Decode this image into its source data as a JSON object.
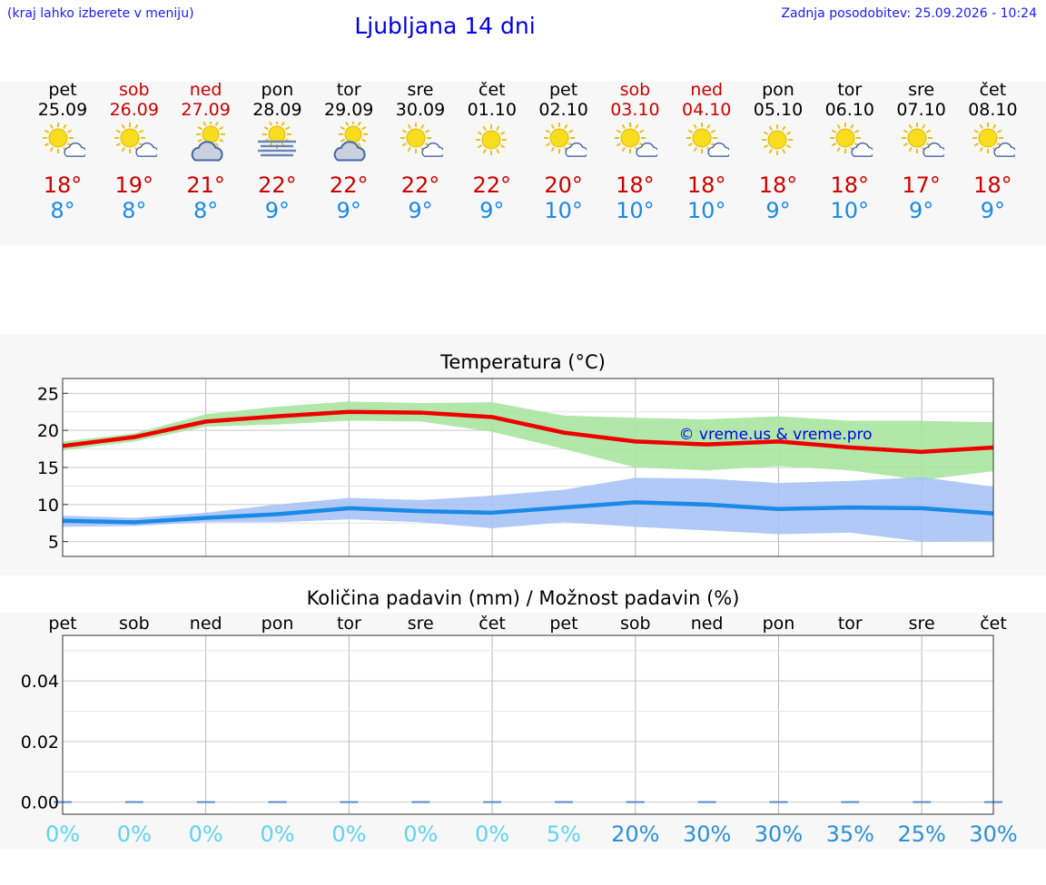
{
  "header": {
    "hint": "(kraj lahko izberete v meniju)",
    "title": "Ljubljana 14 dni",
    "updated": "Zadnja posodobitev: 25.09.2026 - 10:24"
  },
  "days": [
    {
      "name": "pet",
      "date": "25.09",
      "weekend": false,
      "icon": "sun-cloud",
      "max": "18°",
      "min": "8°"
    },
    {
      "name": "sob",
      "date": "26.09",
      "weekend": true,
      "icon": "sun-cloud",
      "max": "19°",
      "min": "8°"
    },
    {
      "name": "ned",
      "date": "27.09",
      "weekend": true,
      "icon": "cloud-sun",
      "max": "21°",
      "min": "8°"
    },
    {
      "name": "pon",
      "date": "28.09",
      "weekend": false,
      "icon": "sun-fog",
      "max": "22°",
      "min": "9°"
    },
    {
      "name": "tor",
      "date": "29.09",
      "weekend": false,
      "icon": "cloud-sun",
      "max": "22°",
      "min": "9°"
    },
    {
      "name": "sre",
      "date": "30.09",
      "weekend": false,
      "icon": "sun-cloud",
      "max": "22°",
      "min": "9°"
    },
    {
      "name": "čet",
      "date": "01.10",
      "weekend": false,
      "icon": "sun",
      "max": "22°",
      "min": "9°"
    },
    {
      "name": "pet",
      "date": "02.10",
      "weekend": false,
      "icon": "sun-cloud",
      "max": "20°",
      "min": "10°"
    },
    {
      "name": "sob",
      "date": "03.10",
      "weekend": true,
      "icon": "sun-cloud",
      "max": "18°",
      "min": "10°"
    },
    {
      "name": "ned",
      "date": "04.10",
      "weekend": true,
      "icon": "sun-cloud",
      "max": "18°",
      "min": "10°"
    },
    {
      "name": "pon",
      "date": "05.10",
      "weekend": false,
      "icon": "sun",
      "max": "18°",
      "min": "9°"
    },
    {
      "name": "tor",
      "date": "06.10",
      "weekend": false,
      "icon": "sun-cloud",
      "max": "18°",
      "min": "10°"
    },
    {
      "name": "sre",
      "date": "07.10",
      "weekend": false,
      "icon": "sun-cloud",
      "max": "17°",
      "min": "9°"
    },
    {
      "name": "čet",
      "date": "08.10",
      "weekend": false,
      "icon": "sun-cloud",
      "max": "18°",
      "min": "9°"
    }
  ],
  "colors": {
    "max": "#cc0000",
    "min": "#1a8ae6",
    "max_band": "#a8e6a0",
    "min_band": "#a9c3f5",
    "max_line": "#ee0000",
    "min_line": "#1a8ae6",
    "pct_low": "#5fd3f0",
    "pct_high": "#2a8fd6"
  },
  "chart_data": [
    {
      "type": "line",
      "title": "Temperatura (°C)",
      "watermark": "© vreme.us & vreme.pro",
      "categories": [
        "pet",
        "sob",
        "ned",
        "pon",
        "tor",
        "sre",
        "čet",
        "pet",
        "sob",
        "ned",
        "pon",
        "tor",
        "sre",
        "čet"
      ],
      "ylim": [
        3,
        27
      ],
      "yticks": [
        5,
        10,
        15,
        20,
        25
      ],
      "grid": true,
      "series": [
        {
          "values": [
            17.9,
            19.1,
            21.2,
            21.9,
            22.5,
            22.4,
            21.8,
            19.7,
            18.5,
            18.1,
            18.5,
            17.7,
            17.1,
            17.7
          ]
        },
        {
          "values": [
            7.8,
            7.6,
            8.2,
            8.7,
            9.5,
            9.1,
            8.9,
            9.6,
            10.3,
            10.0,
            9.4,
            9.6,
            9.5,
            8.8
          ]
        }
      ],
      "bands": [
        {
          "low": [
            17.3,
            18.5,
            20.5,
            20.8,
            21.3,
            21.2,
            19.8,
            17.5,
            15.0,
            14.6,
            15.2,
            14.6,
            13.3,
            14.5
          ],
          "high": [
            18.5,
            19.6,
            22.2,
            23.2,
            23.9,
            23.7,
            23.8,
            22.0,
            21.7,
            21.5,
            21.9,
            21.3,
            21.3,
            21.1
          ]
        },
        {
          "low": [
            7.0,
            7.1,
            7.6,
            7.6,
            8.0,
            7.6,
            6.8,
            7.6,
            7.0,
            6.5,
            6.0,
            6.2,
            5.0,
            5.1
          ],
          "high": [
            8.5,
            8.2,
            8.9,
            10.0,
            10.9,
            10.6,
            11.2,
            12.0,
            13.6,
            13.5,
            12.9,
            13.2,
            13.7,
            12.4
          ]
        }
      ]
    },
    {
      "type": "bar",
      "title": "Količina padavin (mm) / Možnost padavin (%)",
      "categories": [
        "pet",
        "sob",
        "ned",
        "pon",
        "tor",
        "sre",
        "čet",
        "pet",
        "sob",
        "ned",
        "pon",
        "tor",
        "sre",
        "čet"
      ],
      "values": [
        0,
        0,
        0,
        0,
        0,
        0,
        0,
        0,
        0,
        0,
        0,
        0,
        0,
        0
      ],
      "ylim": [
        -0.004,
        0.055
      ],
      "yticks": [
        "0.00",
        "0.02",
        "0.04"
      ],
      "yticks_values": [
        0,
        0.02,
        0.04
      ],
      "probability": [
        "0%",
        "0%",
        "0%",
        "0%",
        "0%",
        "0%",
        "0%",
        "5%",
        "20%",
        "30%",
        "30%",
        "35%",
        "25%",
        "30%"
      ],
      "grid": true
    }
  ]
}
